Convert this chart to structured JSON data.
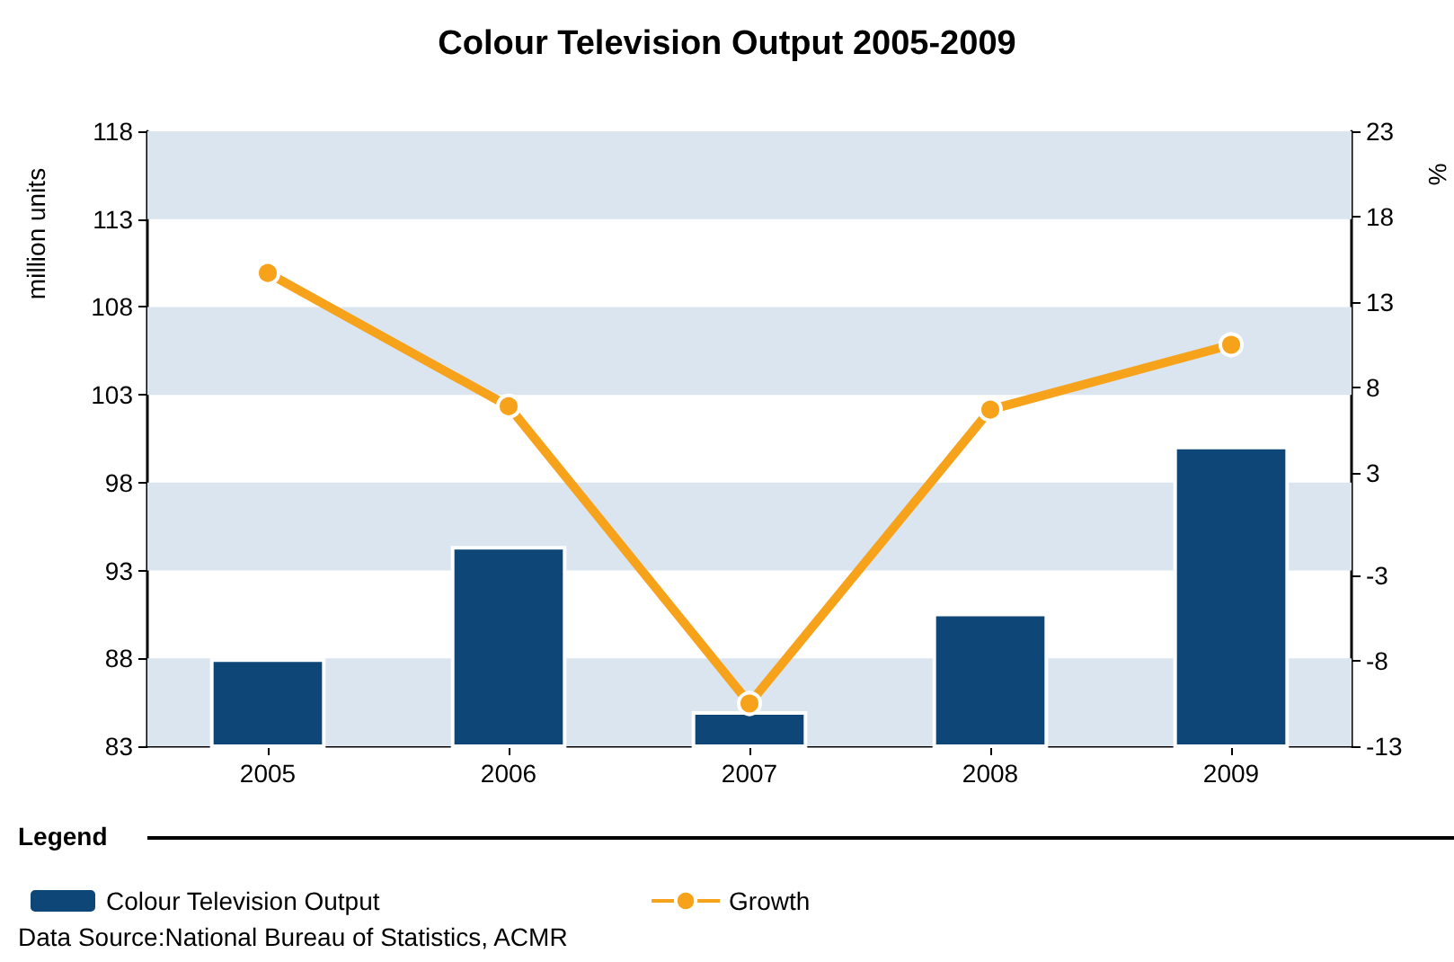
{
  "chart_data": {
    "type": "bar",
    "title": "Colour Television Output 2005-2009",
    "ylabel": "million units",
    "y2label": "%",
    "legend_title": "Legend",
    "annotations": [
      "Data Source:National Bureau of Statistics, ACMR"
    ],
    "categories": [
      "2005",
      "2006",
      "2007",
      "2008",
      "2009"
    ],
    "series": [
      {
        "name": "Colour Television Output",
        "color": "#0d4677",
        "values": [
          88.0,
          94.4,
          85.0,
          90.6,
          100.1
        ]
      },
      {
        "name": "Growth",
        "type": "line",
        "axis": "y2",
        "color": "#f7a21b",
        "values": [
          14.7,
          6.9,
          -10.5,
          6.7,
          10.5
        ]
      }
    ],
    "ylim": [
      83,
      118
    ],
    "yticks": [
      83,
      88,
      93,
      98,
      103,
      108,
      113,
      118
    ],
    "y2lim": [
      -13,
      23
    ],
    "y2ticks": [
      -13,
      -8,
      -3,
      3,
      8,
      13,
      18,
      23
    ],
    "bands": [
      {
        "axis": "y",
        "from": 83,
        "to": 88,
        "color": "#dae5f0"
      },
      {
        "axis": "y",
        "from": 93,
        "to": 98,
        "color": "#dae5f0"
      },
      {
        "axis": "y",
        "from": 103,
        "to": 108,
        "color": "#dae5f0"
      },
      {
        "axis": "y",
        "from": 113,
        "to": 118,
        "color": "#dae5f0"
      }
    ],
    "legend": "bottom",
    "marker": "circle",
    "line_style": "solid"
  }
}
